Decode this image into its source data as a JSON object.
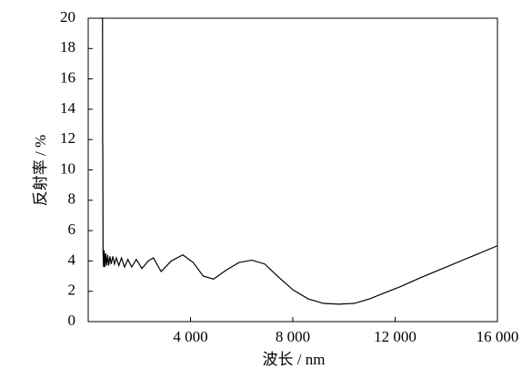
{
  "chart_data": {
    "type": "line",
    "xlabel": "波长 / nm",
    "ylabel": "反射率 / %",
    "x": [
      500,
      560,
      565,
      570,
      580,
      600,
      620,
      650,
      680,
      720,
      760,
      800,
      850,
      900,
      960,
      1030,
      1100,
      1200,
      1300,
      1420,
      1550,
      1700,
      1880,
      2100,
      2350,
      2550,
      2850,
      3250,
      3700,
      4100,
      4500,
      4900,
      5400,
      5900,
      6400,
      6900,
      7400,
      8000,
      8600,
      9200,
      9800,
      10400,
      11000,
      11600,
      12200,
      13000,
      14000,
      15000,
      16000
    ],
    "series": [
      {
        "color": "#000000",
        "values": [
          20,
          20,
          11.8,
          11.7,
          4.5,
          3.6,
          4.7,
          3.6,
          4.5,
          3.7,
          4.4,
          3.7,
          4.3,
          3.8,
          4.3,
          3.8,
          4.2,
          3.7,
          4.2,
          3.6,
          4.1,
          3.6,
          4.1,
          3.5,
          4.0,
          4.2,
          3.3,
          4.0,
          4.4,
          3.9,
          3.0,
          2.8,
          3.4,
          3.9,
          4.05,
          3.8,
          3.0,
          2.1,
          1.5,
          1.2,
          1.15,
          1.2,
          1.5,
          1.9,
          2.3,
          2.9,
          3.6,
          4.3,
          5.0
        ]
      }
    ],
    "xlim": [
      0,
      16000
    ],
    "xticks": [
      {
        "value": 4000,
        "label": "4 000"
      },
      {
        "value": 8000,
        "label": "8 000"
      },
      {
        "value": 12000,
        "label": "12 000"
      },
      {
        "value": 16000,
        "label": "16 000"
      }
    ],
    "ylim": [
      0,
      20
    ],
    "yticks": [
      0,
      2,
      4,
      6,
      8,
      10,
      12,
      14,
      16,
      18,
      20
    ]
  }
}
